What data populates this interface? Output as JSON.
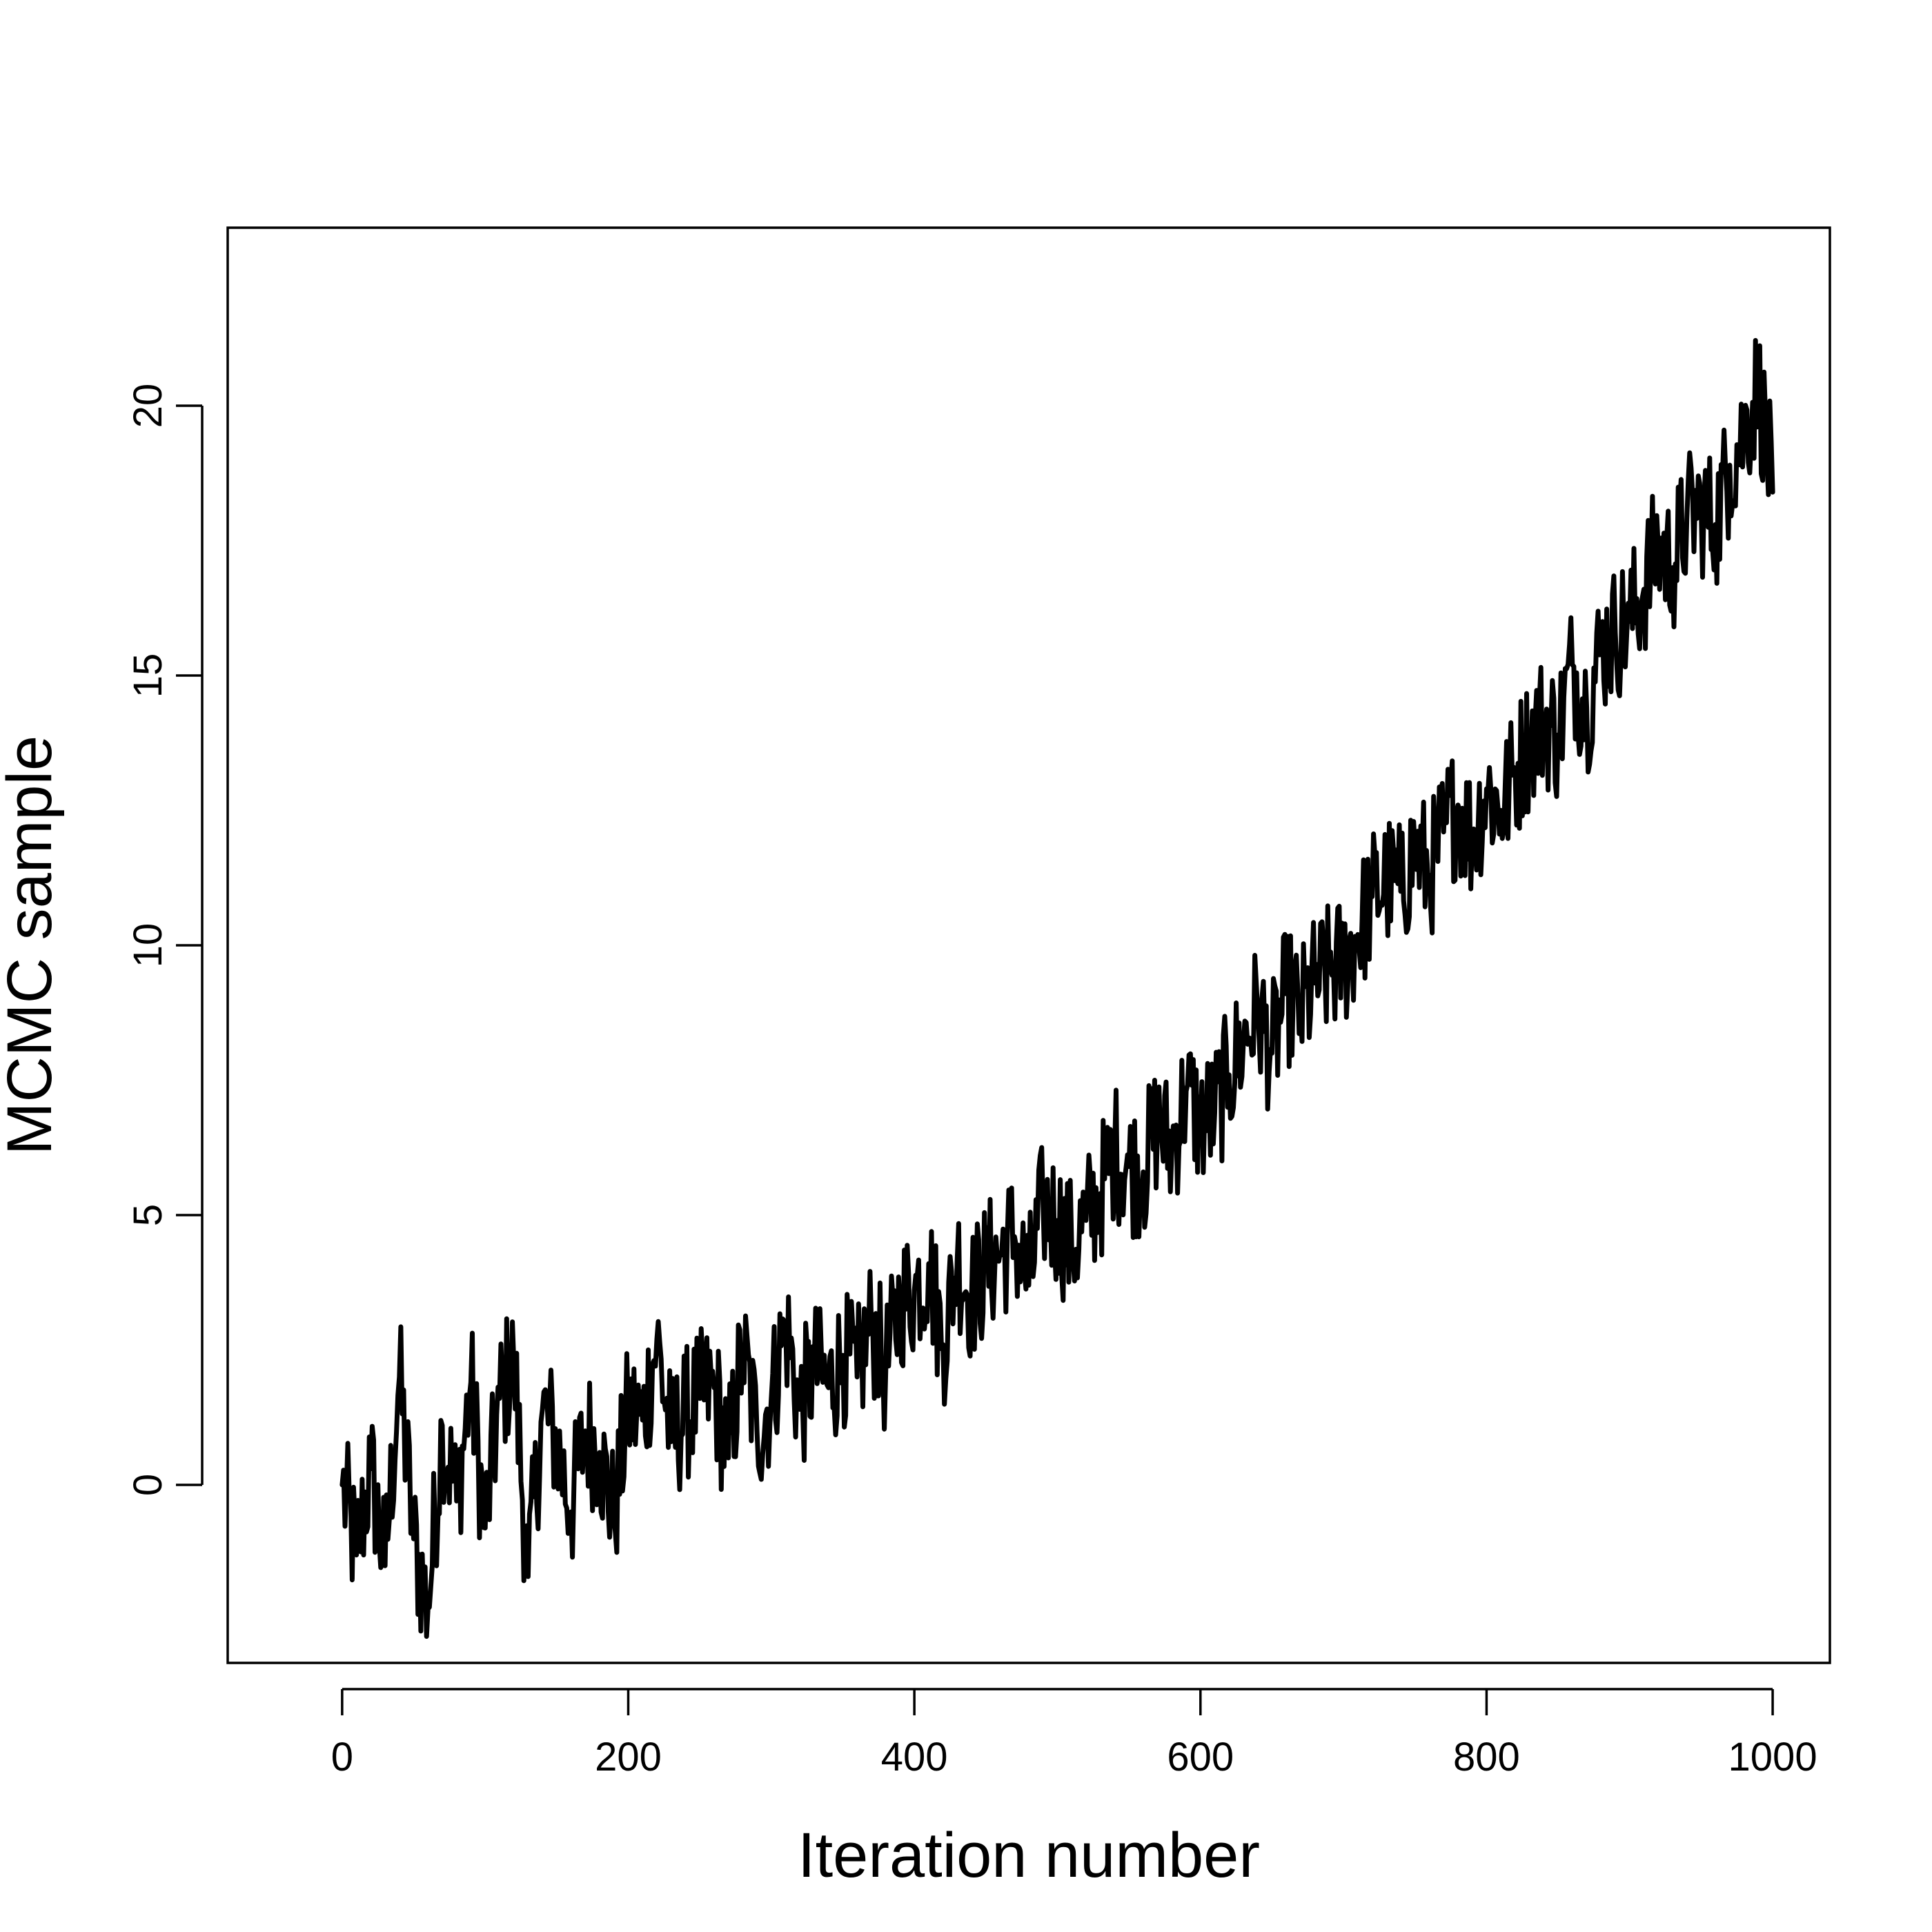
{
  "chart_data": {
    "type": "line",
    "title": "",
    "xlabel": "Iteration number",
    "ylabel": "MCMC sample",
    "xlim": [
      -80,
      1040
    ],
    "ylim": [
      -3.3,
      23.3
    ],
    "x_ticks": [
      0,
      200,
      400,
      600,
      800,
      1000
    ],
    "x_tick_labels": [
      "0",
      "200",
      "400",
      "600",
      "800",
      "1000"
    ],
    "y_ticks": [
      0,
      5,
      10,
      15,
      20
    ],
    "y_tick_labels": [
      "0",
      "5",
      "10",
      "15",
      "20"
    ],
    "grid": false,
    "legend": "none",
    "line_color": "#000000",
    "series": [
      {
        "x": [
          0,
          10,
          20,
          30,
          40,
          50,
          60,
          70,
          80,
          90,
          100,
          110,
          120,
          130,
          140,
          150,
          160,
          170,
          180,
          190,
          200,
          210,
          220,
          230,
          240,
          250,
          260,
          270,
          280,
          290,
          300,
          310,
          320,
          330,
          340,
          350,
          360,
          370,
          380,
          390,
          400,
          410,
          420,
          430,
          440,
          450,
          460,
          470,
          480,
          490,
          500,
          510,
          520,
          530,
          540,
          550,
          560,
          570,
          580,
          590,
          600,
          610,
          620,
          630,
          640,
          650,
          660,
          670,
          680,
          690,
          700,
          710,
          720,
          730,
          740,
          750,
          760,
          770,
          780,
          790,
          800,
          810,
          820,
          830,
          840,
          850,
          860,
          870,
          880,
          890,
          900,
          910,
          920,
          930,
          940,
          950,
          960,
          970,
          980,
          990,
          1000
        ],
        "values": [
          0.0,
          -1.3,
          0.3,
          -1.5,
          2.0,
          -1.0,
          -2.3,
          1.1,
          -0.3,
          1.9,
          -0.8,
          1.6,
          2.3,
          -1.7,
          1.4,
          0.8,
          -0.5,
          1.0,
          0.6,
          -0.6,
          1.4,
          1.2,
          2.7,
          0.8,
          1.3,
          1.6,
          1.8,
          0.5,
          2.5,
          1.0,
          1.6,
          3.0,
          1.4,
          2.2,
          1.8,
          2.4,
          2.0,
          3.0,
          2.1,
          3.4,
          3.6,
          4.1,
          2.6,
          4.2,
          3.5,
          4.0,
          4.3,
          4.6,
          3.7,
          5.2,
          4.9,
          4.4,
          4.9,
          5.4,
          6.2,
          5.9,
          5.8,
          6.7,
          6.2,
          7.3,
          6.7,
          6.9,
          7.6,
          8.2,
          8.8,
          8.0,
          9.1,
          8.7,
          9.3,
          9.5,
          9.7,
          10.2,
          10.9,
          11.2,
          11.0,
          11.8,
          11.3,
          12.1,
          12.6,
          12.0,
          12.9,
          12.5,
          13.2,
          13.8,
          14.2,
          13.9,
          15.2,
          14.4,
          15.5,
          15.8,
          16.0,
          16.6,
          17.4,
          17.0,
          17.9,
          18.1,
          17.8,
          18.9,
          19.5,
          20.4,
          18.4
        ]
      }
    ]
  }
}
